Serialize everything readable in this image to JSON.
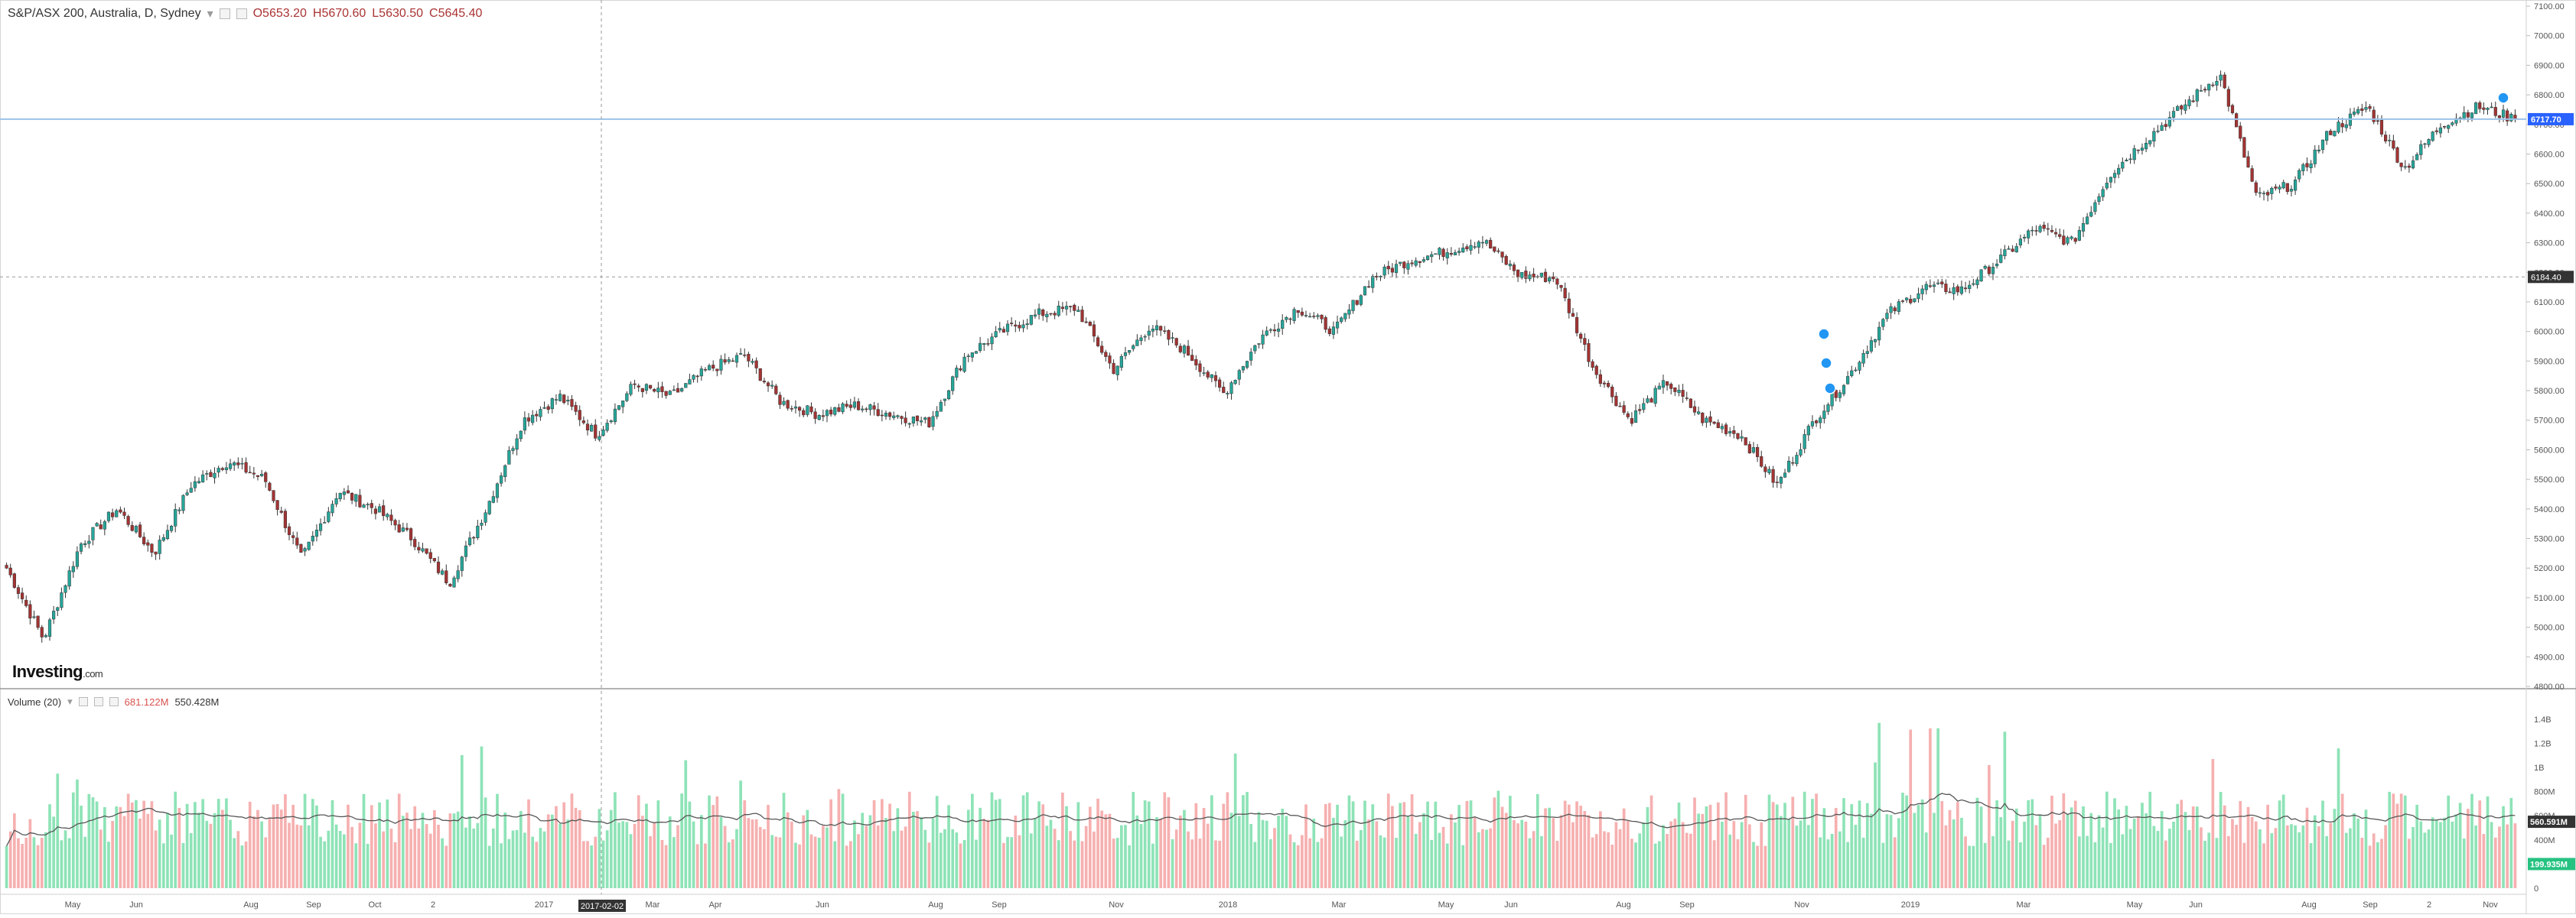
{
  "header": {
    "symbol": "S&P/ASX 200, Australia, D, Sydney",
    "open": "O5653.20",
    "high": "H5670.60",
    "low": "L5630.50",
    "close": "C5645.40"
  },
  "volume_header": {
    "title": "Volume (20)",
    "value1": "681.122M",
    "value2": "550.428M"
  },
  "logo": {
    "main": "Investing",
    "suffix": ".com"
  },
  "price_axis": {
    "ticks": [
      "7100.00",
      "7000.00",
      "6900.00",
      "6800.00",
      "6700.00",
      "6600.00",
      "6500.00",
      "6400.00",
      "6300.00",
      "6200.00",
      "6100.00",
      "6000.00",
      "5900.00",
      "5800.00",
      "5700.00",
      "5600.00",
      "5500.00",
      "5400.00",
      "5300.00",
      "5200.00",
      "5100.00",
      "5000.00",
      "4900.00",
      "4800.00"
    ],
    "current_label": "6717.70",
    "crosshair_label": "6184.40"
  },
  "volume_axis": {
    "ticks": [
      "1.4B",
      "1.2B",
      "1B",
      "800M",
      "600M",
      "400M",
      "200M",
      "0"
    ],
    "label_dark": "560.591M",
    "label_green": "199.935M"
  },
  "time_axis": {
    "labels": [
      "May",
      "Jun",
      "Aug",
      "Sep",
      "Oct",
      "2",
      "2017",
      "Mar",
      "Apr",
      "Jun",
      "Aug",
      "Sep",
      "Nov",
      "2018",
      "Mar",
      "May",
      "Jun",
      "Aug",
      "Sep",
      "Nov",
      "2019",
      "Mar",
      "May",
      "Jun",
      "Aug",
      "Sep",
      "2",
      "Nov"
    ],
    "crosshair_date": "2017-02-02"
  },
  "colors": {
    "up": "#26a69a",
    "down": "#a33333",
    "vol_up": "#8ee3b7",
    "vol_down": "#f6b0b0",
    "hline": "#9cc3ea",
    "marker": "#2196f3"
  },
  "chart_data": {
    "type": "candlestick",
    "title": "S&P/ASX 200, Australia, D, Sydney",
    "xlabel": "",
    "ylabel": "",
    "ylim": [
      4800,
      7100
    ],
    "x_range": [
      "2016-04",
      "2019-11"
    ],
    "close_anchors": [
      {
        "x": "2016-04",
        "y": 5200
      },
      {
        "x": "2016-05",
        "y": 4960
      },
      {
        "x": "2016-05b",
        "y": 5280
      },
      {
        "x": "2016-06",
        "y": 5400
      },
      {
        "x": "2016-06b",
        "y": 5250
      },
      {
        "x": "2016-07",
        "y": 5480
      },
      {
        "x": "2016-08",
        "y": 5560
      },
      {
        "x": "2016-08b",
        "y": 5500
      },
      {
        "x": "2016-09",
        "y": 5230
      },
      {
        "x": "2016-09b",
        "y": 5460
      },
      {
        "x": "2016-10",
        "y": 5400
      },
      {
        "x": "2016-10b",
        "y": 5300
      },
      {
        "x": "2016-11",
        "y": 5150
      },
      {
        "x": "2016-11b",
        "y": 5400
      },
      {
        "x": "2016-12",
        "y": 5700
      },
      {
        "x": "2017-01",
        "y": 5780
      },
      {
        "x": "2017-02",
        "y": 5650
      },
      {
        "x": "2017-03",
        "y": 5820
      },
      {
        "x": "2017-03b",
        "y": 5780
      },
      {
        "x": "2017-04",
        "y": 5870
      },
      {
        "x": "2017-04b",
        "y": 5920
      },
      {
        "x": "2017-05",
        "y": 5760
      },
      {
        "x": "2017-06",
        "y": 5720
      },
      {
        "x": "2017-07",
        "y": 5750
      },
      {
        "x": "2017-08",
        "y": 5720
      },
      {
        "x": "2017-09",
        "y": 5690
      },
      {
        "x": "2017-10",
        "y": 5920
      },
      {
        "x": "2017-11",
        "y": 6000
      },
      {
        "x": "2017-12",
        "y": 6060
      },
      {
        "x": "2018-01",
        "y": 6080
      },
      {
        "x": "2018-02",
        "y": 5870
      },
      {
        "x": "2018-02b",
        "y": 6020
      },
      {
        "x": "2018-03",
        "y": 5930
      },
      {
        "x": "2018-04",
        "y": 5790
      },
      {
        "x": "2018-04b",
        "y": 5980
      },
      {
        "x": "2018-05",
        "y": 6080
      },
      {
        "x": "2018-06",
        "y": 6000
      },
      {
        "x": "2018-06b",
        "y": 6180
      },
      {
        "x": "2018-07",
        "y": 6240
      },
      {
        "x": "2018-08",
        "y": 6270
      },
      {
        "x": "2018-08b",
        "y": 6310
      },
      {
        "x": "2018-09",
        "y": 6190
      },
      {
        "x": "2018-09b",
        "y": 6180
      },
      {
        "x": "2018-10",
        "y": 5880
      },
      {
        "x": "2018-10b",
        "y": 5700
      },
      {
        "x": "2018-11",
        "y": 5830
      },
      {
        "x": "2018-11b",
        "y": 5700
      },
      {
        "x": "2018-12",
        "y": 5650
      },
      {
        "x": "2018-12b",
        "y": 5480
      },
      {
        "x": "2019-01",
        "y": 5700
      },
      {
        "x": "2019-01b",
        "y": 5860
      },
      {
        "x": "2019-02",
        "y": 6060
      },
      {
        "x": "2019-03",
        "y": 6150
      },
      {
        "x": "2019-03b",
        "y": 6140
      },
      {
        "x": "2019-04",
        "y": 6240
      },
      {
        "x": "2019-05",
        "y": 6350
      },
      {
        "x": "2019-05b",
        "y": 6300
      },
      {
        "x": "2019-06",
        "y": 6530
      },
      {
        "x": "2019-06b",
        "y": 6650
      },
      {
        "x": "2019-07",
        "y": 6760
      },
      {
        "x": "2019-07b",
        "y": 6870
      },
      {
        "x": "2019-08",
        "y": 6450
      },
      {
        "x": "2019-08b",
        "y": 6500
      },
      {
        "x": "2019-09",
        "y": 6680
      },
      {
        "x": "2019-09b",
        "y": 6760
      },
      {
        "x": "2019-10",
        "y": 6550
      },
      {
        "x": "2019-10b",
        "y": 6700
      },
      {
        "x": "2019-11",
        "y": 6760
      },
      {
        "x": "2019-11b",
        "y": 6718
      }
    ],
    "last_close": 6717.7,
    "volume": {
      "name": "Volume (20)",
      "ylim": [
        0,
        1.5
      ],
      "unit": "B",
      "avg_level": 0.55
    }
  }
}
